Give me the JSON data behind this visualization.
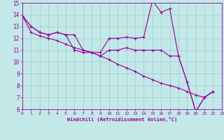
{
  "xlabel": "Windchill (Refroidissement éolien,°C)",
  "bg_color": "#c2e8e8",
  "line_color": "#990099",
  "grid_color": "#a0cccc",
  "xmin": 0,
  "xmax": 23,
  "ymin": 6,
  "ymax": 15,
  "xticks": [
    0,
    1,
    2,
    3,
    4,
    5,
    6,
    7,
    8,
    9,
    10,
    11,
    12,
    13,
    14,
    15,
    16,
    17,
    18,
    19,
    20,
    21,
    22,
    23
  ],
  "yticks": [
    6,
    7,
    8,
    9,
    10,
    11,
    12,
    13,
    14,
    15
  ],
  "line1_x": [
    0,
    1,
    2,
    3,
    4,
    5,
    6,
    7,
    8,
    9,
    10,
    11,
    12,
    13,
    14,
    15,
    16,
    17,
    18,
    19,
    20,
    21,
    22
  ],
  "line1_y": [
    13.9,
    13.0,
    12.5,
    12.3,
    12.5,
    12.3,
    12.3,
    11.0,
    10.8,
    10.8,
    12.0,
    12.0,
    12.1,
    12.0,
    12.1,
    15.2,
    14.2,
    14.5,
    10.5,
    8.3,
    5.8,
    7.0,
    7.5
  ],
  "line2_x": [
    0,
    1,
    2,
    3,
    4,
    5,
    6,
    7,
    8,
    9,
    10,
    11,
    12,
    13,
    14,
    15,
    16,
    17,
    18,
    19,
    20,
    21,
    22
  ],
  "line2_y": [
    13.9,
    13.0,
    12.5,
    12.3,
    12.5,
    12.3,
    11.0,
    10.8,
    10.8,
    10.5,
    11.0,
    11.0,
    11.2,
    11.0,
    11.0,
    11.0,
    11.0,
    10.5,
    10.5,
    8.3,
    5.8,
    7.0,
    7.5
  ],
  "line3_x": [
    0,
    1,
    2,
    3,
    4,
    5,
    6,
    7,
    8,
    9,
    10,
    11,
    12,
    13,
    14,
    15,
    16,
    17,
    18,
    19,
    20,
    21,
    22
  ],
  "line3_y": [
    13.9,
    12.5,
    12.2,
    12.0,
    11.8,
    11.5,
    11.2,
    11.0,
    10.8,
    10.5,
    10.2,
    9.8,
    9.5,
    9.2,
    8.8,
    8.5,
    8.2,
    8.0,
    7.8,
    7.5,
    7.2,
    7.0,
    7.5
  ]
}
